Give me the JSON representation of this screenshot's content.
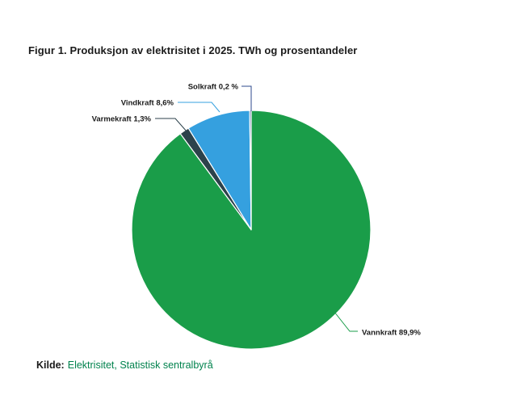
{
  "chart_data": {
    "type": "pie",
    "title": "Figur 1. Produksjon av elektrisitet i 2025. TWh og prosentandeler",
    "unit": "percent",
    "direction": "clockwise",
    "start_angle_deg": 0,
    "legend": "none",
    "slice_border_color": "#ffffff",
    "slices": [
      {
        "name": "Vannkraft",
        "value": 89.9,
        "label": "Vannkraft 89,9%",
        "color": "#1a9d49"
      },
      {
        "name": "Varmekraft",
        "value": 1.3,
        "label": "Varmekraft 1,3%",
        "color": "#2c424b"
      },
      {
        "name": "Vindkraft",
        "value": 8.6,
        "label": "Vindkraft 8,6%",
        "color": "#35a0df"
      },
      {
        "name": "Solkraft",
        "value": 0.2,
        "label": "Solkraft 0,2 %",
        "color": "#2c4a8c"
      }
    ]
  },
  "source": {
    "prefix": "Kilde:",
    "text": "Elektrisitet, Statistisk sentralbyrå"
  }
}
